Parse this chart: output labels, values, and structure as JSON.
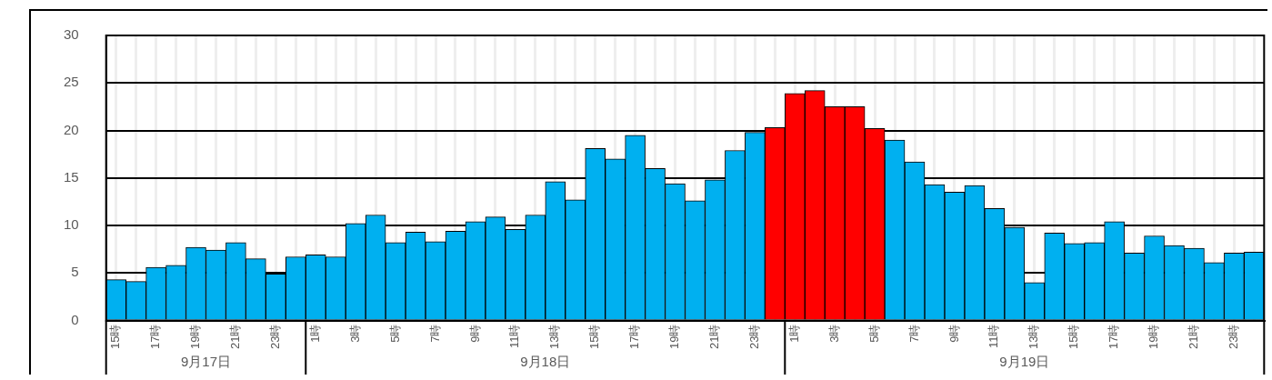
{
  "chart_data": {
    "type": "bar",
    "categories": [
      "15時",
      null,
      "17時",
      null,
      "19時",
      null,
      "21時",
      null,
      "23時",
      null,
      "1時",
      null,
      "3時",
      null,
      "5時",
      null,
      "7時",
      null,
      "9時",
      null,
      "11時",
      null,
      "13時",
      null,
      "15時",
      null,
      "17時",
      null,
      "19時",
      null,
      "21時",
      null,
      "23時",
      null,
      "1時",
      null,
      "3時",
      null,
      "5時",
      null,
      "7時",
      null,
      "9時",
      null,
      "11時",
      null,
      "13時",
      null,
      "15時",
      null,
      "17時",
      null,
      "19時",
      null,
      "21時",
      null,
      "23時",
      null
    ],
    "values": [
      4.3,
      4.1,
      5.6,
      5.8,
      7.7,
      7.4,
      8.2,
      6.5,
      4.9,
      6.7,
      6.9,
      6.7,
      10.2,
      11.1,
      8.2,
      9.3,
      8.3,
      9.4,
      10.4,
      10.9,
      9.6,
      11.1,
      14.6,
      12.7,
      18.1,
      17.0,
      19.5,
      16.0,
      14.4,
      12.6,
      14.8,
      17.9,
      19.8,
      20.3,
      23.9,
      24.2,
      22.5,
      22.5,
      20.2,
      19.0,
      16.7,
      14.3,
      13.5,
      14.2,
      11.8,
      9.8,
      4.0,
      9.2,
      8.1,
      8.2,
      10.4,
      7.1,
      8.9,
      7.9,
      7.6,
      6.1,
      7.1,
      7.2
    ],
    "colors": [
      "#00b0f0",
      "#00b0f0",
      "#00b0f0",
      "#00b0f0",
      "#00b0f0",
      "#00b0f0",
      "#00b0f0",
      "#00b0f0",
      "#00b0f0",
      "#00b0f0",
      "#00b0f0",
      "#00b0f0",
      "#00b0f0",
      "#00b0f0",
      "#00b0f0",
      "#00b0f0",
      "#00b0f0",
      "#00b0f0",
      "#00b0f0",
      "#00b0f0",
      "#00b0f0",
      "#00b0f0",
      "#00b0f0",
      "#00b0f0",
      "#00b0f0",
      "#00b0f0",
      "#00b0f0",
      "#00b0f0",
      "#00b0f0",
      "#00b0f0",
      "#00b0f0",
      "#00b0f0",
      "#00b0f0",
      "#ff0000",
      "#ff0000",
      "#ff0000",
      "#ff0000",
      "#ff0000",
      "#ff0000",
      "#00b0f0",
      "#00b0f0",
      "#00b0f0",
      "#00b0f0",
      "#00b0f0",
      "#00b0f0",
      "#00b0f0",
      "#00b0f0",
      "#00b0f0",
      "#00b0f0",
      "#00b0f0",
      "#00b0f0",
      "#00b0f0",
      "#00b0f0",
      "#00b0f0",
      "#00b0f0",
      "#00b0f0",
      "#00b0f0",
      "#00b0f0"
    ],
    "ylim": [
      0,
      30
    ],
    "yticks": [
      0,
      5,
      10,
      15,
      20,
      25,
      30
    ],
    "grid": true,
    "annotations": [
      "9月17日",
      "9月18日",
      "9月19日"
    ]
  }
}
